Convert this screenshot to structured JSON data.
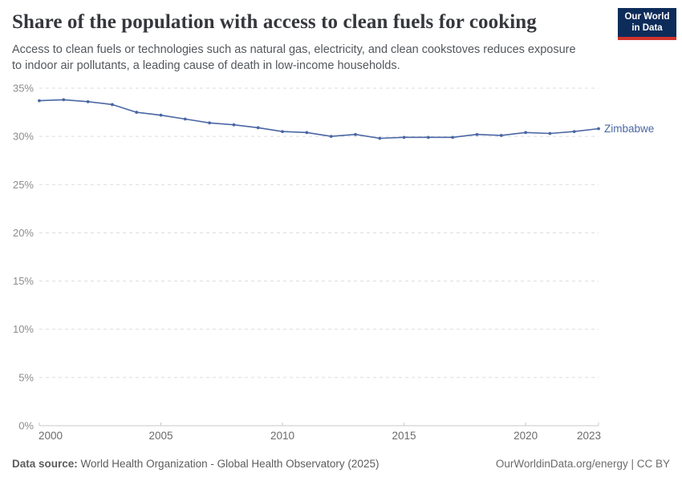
{
  "header": {
    "title": "Share of the population with access to clean fuels for cooking",
    "subtitle_lines": [
      "Access to clean fuels or technologies such as natural gas, electricity, and clean cookstoves reduces exposure",
      "to indoor air pollutants, a leading cause of death in low-income households."
    ],
    "logo": {
      "line1": "Our World",
      "line2": "in Data",
      "bg_color": "#0d2c5a",
      "bar_color": "#d0342c"
    }
  },
  "chart_data": {
    "type": "line",
    "title": "Share of the population with access to clean fuels for cooking",
    "xlabel": "",
    "ylabel": "",
    "xlim": [
      2000,
      2023
    ],
    "ylim": [
      0,
      35
    ],
    "grid": "horizontal-dashed",
    "legend_position": "end-of-line-label",
    "x": [
      2000,
      2001,
      2002,
      2003,
      2004,
      2005,
      2006,
      2007,
      2008,
      2009,
      2010,
      2011,
      2012,
      2013,
      2014,
      2015,
      2016,
      2017,
      2018,
      2019,
      2020,
      2021,
      2022,
      2023
    ],
    "series": [
      {
        "name": "Zimbabwe",
        "color": "#4a67a4",
        "values": [
          33.7,
          33.8,
          33.6,
          33.3,
          32.5,
          32.2,
          31.8,
          31.4,
          31.2,
          30.9,
          30.5,
          30.4,
          30.0,
          30.2,
          29.8,
          29.9,
          29.9,
          29.9,
          30.2,
          30.1,
          30.4,
          30.3,
          30.5,
          30.8
        ]
      }
    ],
    "yticks": [
      {
        "v": 0,
        "label": "0%"
      },
      {
        "v": 5,
        "label": "5%"
      },
      {
        "v": 10,
        "label": "10%"
      },
      {
        "v": 15,
        "label": "15%"
      },
      {
        "v": 20,
        "label": "20%"
      },
      {
        "v": 25,
        "label": "25%"
      },
      {
        "v": 30,
        "label": "30%"
      },
      {
        "v": 35,
        "label": "35%"
      }
    ],
    "xticks": [
      {
        "v": 2000,
        "label": "2000"
      },
      {
        "v": 2005,
        "label": "2005"
      },
      {
        "v": 2010,
        "label": "2010"
      },
      {
        "v": 2015,
        "label": "2015"
      },
      {
        "v": 2020,
        "label": "2020"
      },
      {
        "v": 2023,
        "label": "2023"
      }
    ],
    "colors": {
      "gridline": "#dcdcdc",
      "axis": "#c8c8c8",
      "y_tick_label": "#8c8c8c",
      "x_tick_label": "#6b6b6b"
    }
  },
  "footer": {
    "source_label": "Data source:",
    "source_value": " World Health Organization - Global Health Observatory (2025)",
    "citation": "OurWorldinData.org/energy | CC BY"
  }
}
